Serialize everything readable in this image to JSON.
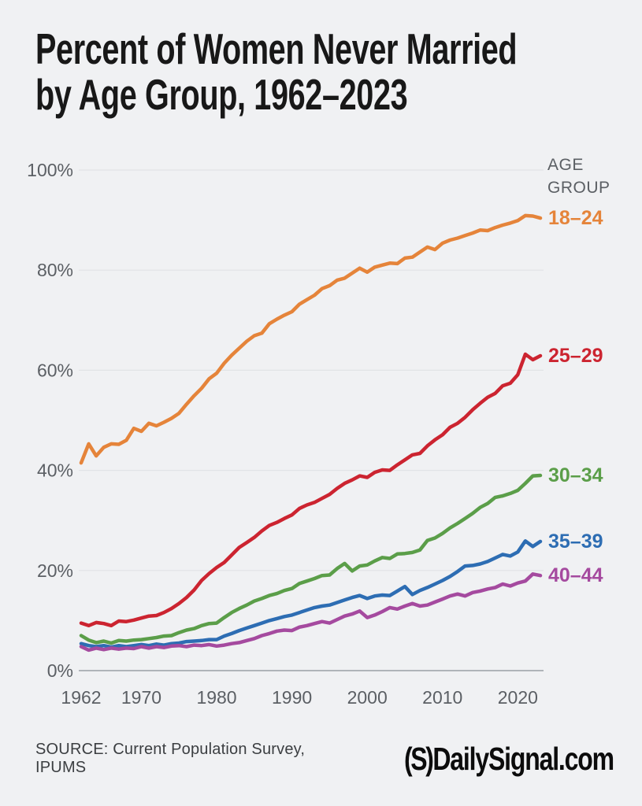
{
  "header": {
    "title_line1": "Percent of Women Never Married",
    "title_line2": "by Age Group, 1962–2023"
  },
  "legend": {
    "title_line1": "AGE",
    "title_line2": "GROUP"
  },
  "footer": {
    "source": "SOURCE: Current Population Survey, IPUMS",
    "logo_mark": "(S)",
    "logo_text": "DailySignal.com"
  },
  "colors": {
    "background": "#f0f1f3",
    "title_text": "#181818",
    "axis_text": "#5b5f64",
    "gridline": "#e1e3e6",
    "zero_line": "#9aa0a6",
    "source_text": "#3b3e41",
    "logo_text": "#0c0c0c"
  },
  "chart_data": {
    "type": "line",
    "title": "Percent of Women Never Married by Age Group, 1962–2023",
    "xlabel": "",
    "ylabel": "",
    "xlim": [
      1962,
      2023
    ],
    "ylim": [
      0,
      100
    ],
    "grid": true,
    "legend_position": "right",
    "legend_title": "AGE GROUP",
    "x_ticks": [
      1962,
      1970,
      1980,
      1990,
      2000,
      2010,
      2020
    ],
    "y_ticks": [
      0,
      20,
      40,
      60,
      80,
      100
    ],
    "y_tick_labels": [
      "0%",
      "20%",
      "40%",
      "60%",
      "80%",
      "100%"
    ],
    "x": [
      1962,
      1963,
      1964,
      1965,
      1966,
      1967,
      1968,
      1969,
      1970,
      1971,
      1972,
      1973,
      1974,
      1975,
      1976,
      1977,
      1978,
      1979,
      1980,
      1981,
      1982,
      1983,
      1984,
      1985,
      1986,
      1987,
      1988,
      1989,
      1990,
      1991,
      1992,
      1993,
      1994,
      1995,
      1996,
      1997,
      1998,
      1999,
      2000,
      2001,
      2002,
      2003,
      2004,
      2005,
      2006,
      2007,
      2008,
      2009,
      2010,
      2011,
      2012,
      2013,
      2014,
      2015,
      2016,
      2017,
      2018,
      2019,
      2020,
      2021,
      2022,
      2023
    ],
    "series": [
      {
        "name": "18–24",
        "color": "#E5843A",
        "values": [
          41.5,
          45.3,
          42.9,
          44.6,
          45.3,
          45.2,
          46.0,
          48.4,
          47.8,
          49.4,
          48.9,
          49.6,
          50.4,
          51.4,
          53.2,
          54.9,
          56.4,
          58.3,
          59.4,
          61.4,
          63.0,
          64.4,
          65.8,
          66.9,
          67.4,
          69.3,
          70.2,
          71.0,
          71.7,
          73.2,
          74.1,
          75.0,
          76.3,
          76.9,
          78.0,
          78.4,
          79.4,
          80.4,
          79.6,
          80.6,
          81.0,
          81.4,
          81.3,
          82.4,
          82.6,
          83.6,
          84.6,
          84.1,
          85.4,
          86.0,
          86.4,
          86.9,
          87.4,
          88.0,
          87.9,
          88.5,
          89.0,
          89.4,
          89.9,
          90.9,
          90.8,
          90.4
        ]
      },
      {
        "name": "25–29",
        "color": "#CC2430",
        "values": [
          9.5,
          9.0,
          9.6,
          9.4,
          9.0,
          9.9,
          9.8,
          10.1,
          10.5,
          10.9,
          11.0,
          11.6,
          12.4,
          13.4,
          14.6,
          16.1,
          18.0,
          19.4,
          20.6,
          21.6,
          23.1,
          24.6,
          25.6,
          26.6,
          27.9,
          29.0,
          29.6,
          30.4,
          31.1,
          32.4,
          33.1,
          33.6,
          34.4,
          35.2,
          36.4,
          37.4,
          38.1,
          38.9,
          38.6,
          39.6,
          40.1,
          40.0,
          41.1,
          42.1,
          43.1,
          43.4,
          44.9,
          46.1,
          47.1,
          48.6,
          49.4,
          50.6,
          52.1,
          53.4,
          54.6,
          55.4,
          56.9,
          57.4,
          59.1,
          63.2,
          62.1,
          62.9
        ]
      },
      {
        "name": "30–34",
        "color": "#5B9E49",
        "values": [
          7.0,
          6.1,
          5.6,
          5.9,
          5.5,
          6.0,
          5.9,
          6.1,
          6.2,
          6.4,
          6.6,
          6.9,
          7.0,
          7.6,
          8.1,
          8.4,
          9.0,
          9.4,
          9.5,
          10.6,
          11.6,
          12.4,
          13.1,
          13.9,
          14.4,
          15.0,
          15.4,
          16.0,
          16.4,
          17.4,
          17.9,
          18.4,
          19.0,
          19.1,
          20.4,
          21.4,
          19.9,
          20.9,
          21.1,
          21.9,
          22.6,
          22.4,
          23.3,
          23.4,
          23.6,
          24.1,
          26.0,
          26.5,
          27.4,
          28.5,
          29.4,
          30.4,
          31.4,
          32.6,
          33.4,
          34.6,
          34.9,
          35.4,
          36.0,
          37.4,
          38.9,
          39.0
        ]
      },
      {
        "name": "35–39",
        "color": "#2D6DB3",
        "values": [
          5.4,
          5.0,
          4.8,
          5.0,
          4.7,
          5.0,
          4.8,
          5.0,
          5.2,
          5.0,
          5.3,
          5.1,
          5.4,
          5.5,
          5.8,
          5.9,
          6.0,
          6.2,
          6.2,
          6.9,
          7.4,
          8.0,
          8.5,
          9.0,
          9.5,
          10.0,
          10.4,
          10.8,
          11.1,
          11.6,
          12.1,
          12.6,
          12.9,
          13.1,
          13.6,
          14.1,
          14.6,
          15.0,
          14.4,
          14.9,
          15.1,
          15.0,
          15.9,
          16.8,
          15.2,
          16.0,
          16.6,
          17.3,
          18.0,
          18.8,
          19.8,
          20.9,
          21.0,
          21.3,
          21.8,
          22.5,
          23.2,
          22.9,
          23.7,
          25.9,
          24.8,
          25.8
        ]
      },
      {
        "name": "40–44",
        "color": "#A54A9F",
        "values": [
          4.8,
          4.1,
          4.5,
          4.2,
          4.5,
          4.3,
          4.5,
          4.4,
          4.8,
          4.5,
          4.8,
          4.6,
          4.9,
          5.0,
          4.8,
          5.1,
          5.0,
          5.2,
          4.9,
          5.1,
          5.4,
          5.6,
          6.0,
          6.4,
          7.0,
          7.4,
          7.9,
          8.1,
          8.0,
          8.7,
          9.0,
          9.4,
          9.8,
          9.5,
          10.2,
          10.9,
          11.3,
          11.9,
          10.6,
          11.1,
          11.8,
          12.6,
          12.3,
          12.9,
          13.4,
          12.9,
          13.1,
          13.7,
          14.3,
          14.9,
          15.3,
          14.9,
          15.6,
          15.9,
          16.3,
          16.6,
          17.3,
          16.9,
          17.5,
          17.9,
          19.3,
          19.0
        ]
      }
    ]
  }
}
